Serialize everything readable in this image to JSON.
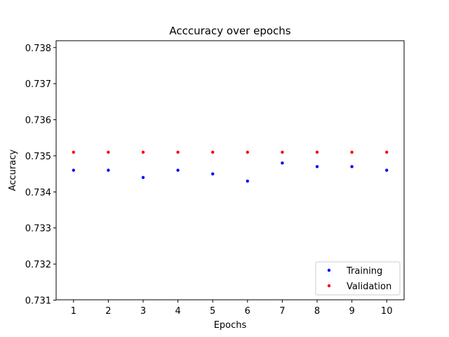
{
  "chart_data": {
    "type": "scatter",
    "title": "Acccuracy over epochs",
    "xlabel": "Epochs",
    "ylabel": "Accuracy",
    "x": [
      1,
      2,
      3,
      4,
      5,
      6,
      7,
      8,
      9,
      10
    ],
    "xticks": [
      "1",
      "2",
      "3",
      "4",
      "5",
      "6",
      "7",
      "8",
      "9",
      "10"
    ],
    "yticks": [
      "0.731",
      "0.732",
      "0.733",
      "0.734",
      "0.735",
      "0.736",
      "0.737",
      "0.738"
    ],
    "xlim": [
      0.5,
      10.5
    ],
    "ylim": [
      0.73101,
      0.73819
    ],
    "grid": false,
    "legend_position": "lower right",
    "series": [
      {
        "name": "Training",
        "color": "#0000ff",
        "values": [
          0.7346,
          0.7346,
          0.7344,
          0.7346,
          0.7345,
          0.7343,
          0.7348,
          0.7347,
          0.7347,
          0.7346
        ]
      },
      {
        "name": "Validation",
        "color": "#ff0000",
        "values": [
          0.7351,
          0.7351,
          0.7351,
          0.7351,
          0.7351,
          0.7351,
          0.7351,
          0.7351,
          0.7351,
          0.7351
        ]
      }
    ]
  }
}
